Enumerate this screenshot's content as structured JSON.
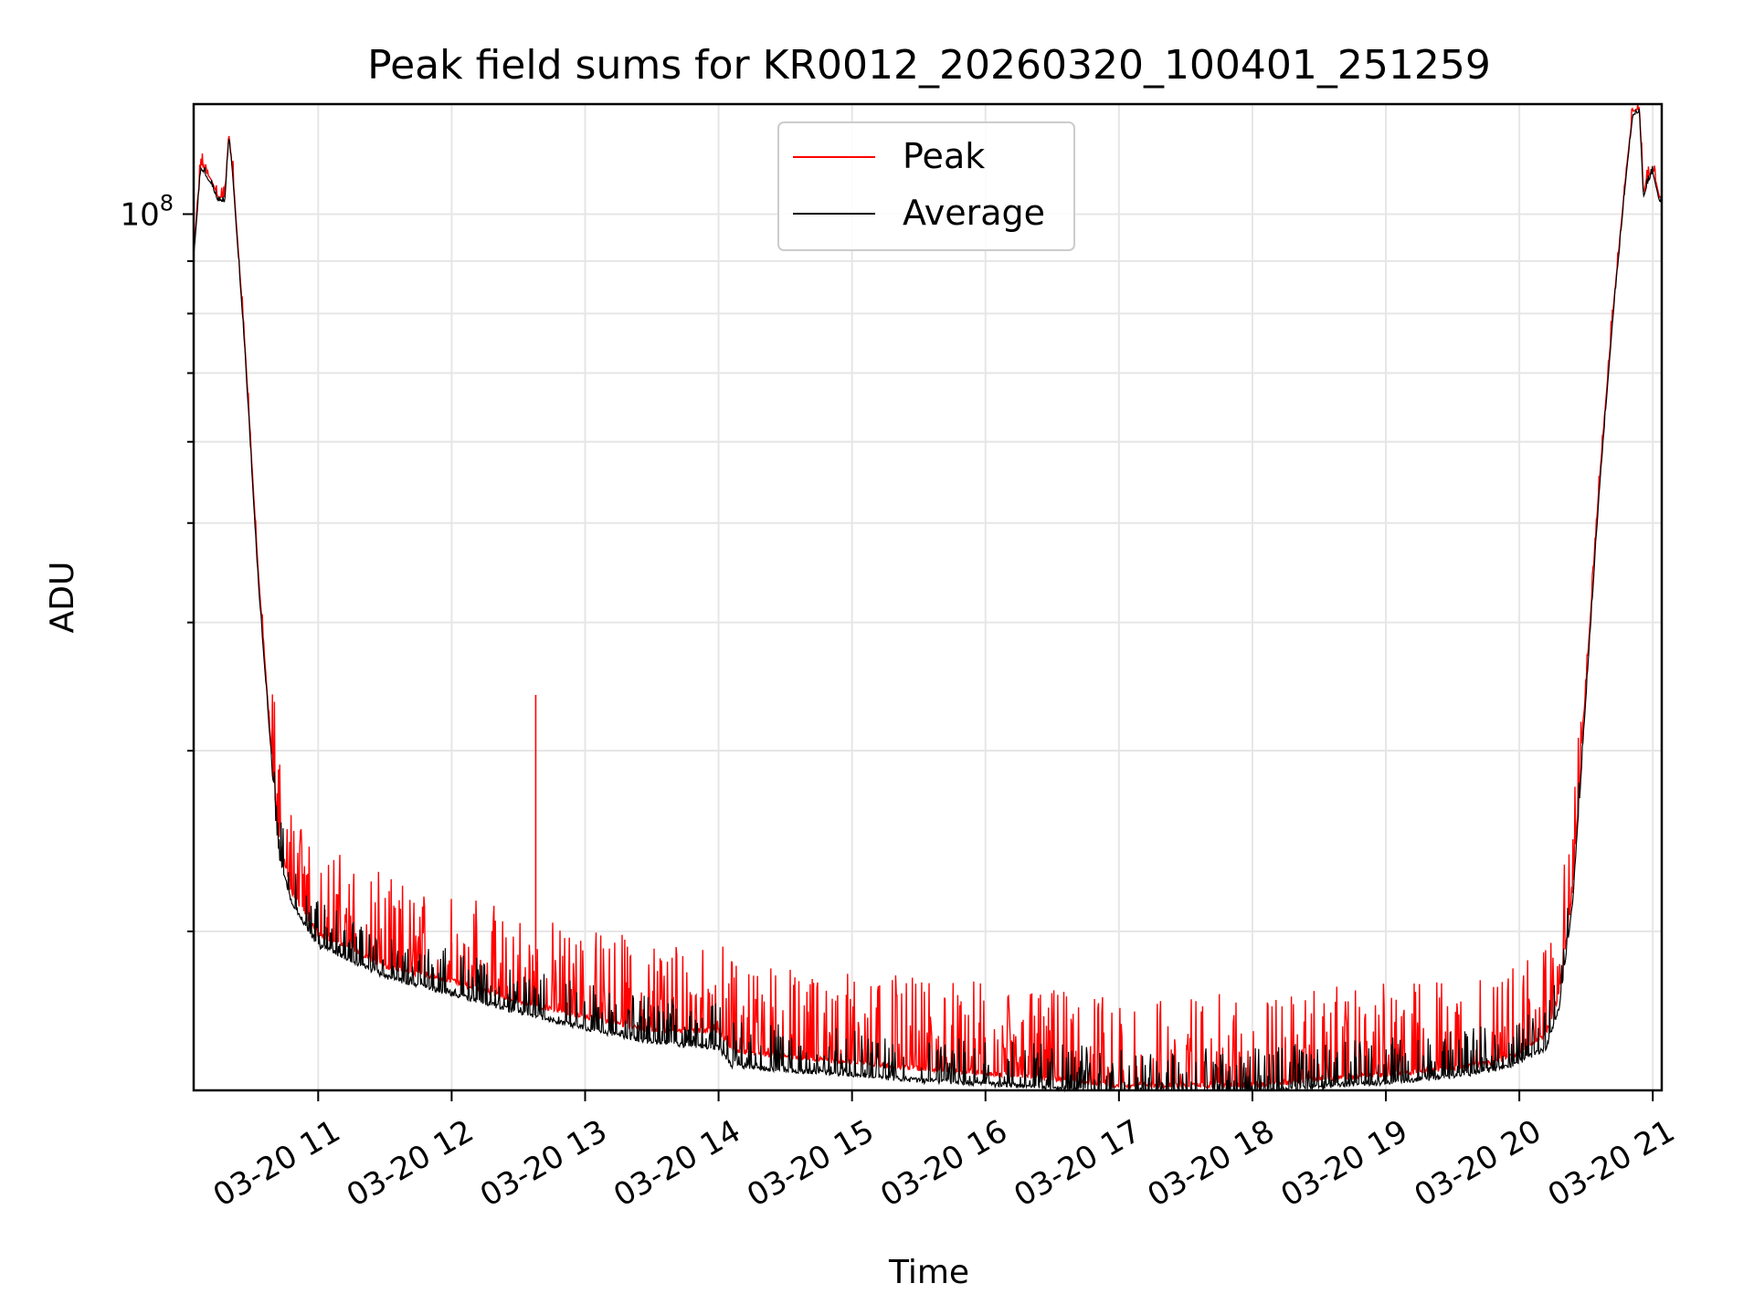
{
  "chart_data": {
    "type": "line",
    "title": "Peak field sums for KR0012_20260320_100401_251259",
    "xlabel": "Time",
    "ylabel": "ADU",
    "yscale": "log",
    "xlim": [
      10.067,
      21.067
    ],
    "ylim": [
      14000000,
      128000000
    ],
    "x_ticks": [
      11,
      12,
      13,
      14,
      15,
      16,
      17,
      18,
      19,
      20,
      21
    ],
    "x_tick_labels": [
      "03-20 11",
      "03-20 12",
      "03-20 13",
      "03-20 14",
      "03-20 15",
      "03-20 16",
      "03-20 17",
      "03-20 18",
      "03-20 19",
      "03-20 20",
      "03-20 21"
    ],
    "y_major_ticks": [
      {
        "value": 100000000,
        "base": "10",
        "exp": "8"
      }
    ],
    "y_minor_ticks": [
      20000000,
      30000000,
      40000000,
      50000000,
      60000000,
      70000000,
      80000000,
      90000000
    ],
    "legend": {
      "position": "upper center"
    },
    "series": [
      {
        "name": "Peak",
        "color": "#ff0000",
        "noise": 0.22,
        "x": [
          10.067,
          10.12,
          10.2,
          10.25,
          10.3,
          10.33,
          10.36,
          10.45,
          10.55,
          10.65,
          10.7,
          10.8,
          11.0,
          11.2,
          11.5,
          12.0,
          12.5,
          13.0,
          13.5,
          14.0,
          14.1,
          14.5,
          15.0,
          15.5,
          16.0,
          16.5,
          17.0,
          17.5,
          18.0,
          18.5,
          19.0,
          19.5,
          19.8,
          20.0,
          20.2,
          20.3,
          20.4,
          20.5,
          20.6,
          20.7,
          20.8,
          20.85,
          20.9,
          20.93,
          20.96,
          21.0,
          21.05
        ],
        "y": [
          92000000,
          112000000,
          108000000,
          104000000,
          104000000,
          120000000,
          110000000,
          75000000,
          45000000,
          30000000,
          25000000,
          22000000,
          20000000,
          19500000,
          18600000,
          18000000,
          17200000,
          16600000,
          16100000,
          16100000,
          15400000,
          15200000,
          15000000,
          14800000,
          14650000,
          14450000,
          14250000,
          14250000,
          14250000,
          14450000,
          14600000,
          14800000,
          15000000,
          15300000,
          16000000,
          17500000,
          22000000,
          35000000,
          55000000,
          80000000,
          110000000,
          126000000,
          127000000,
          105000000,
          108000000,
          111000000,
          104000000
        ],
        "spikes": [
          {
            "x": 12.63,
            "y": 34000000
          },
          {
            "x": 10.72,
            "y": 24500000
          },
          {
            "x": 11.05,
            "y": 21000000
          },
          {
            "x": 12.0,
            "y": 19500000
          }
        ]
      },
      {
        "name": "Average",
        "color": "#000000",
        "noise": 0.1,
        "x": [
          10.067,
          10.12,
          10.2,
          10.25,
          10.3,
          10.33,
          10.36,
          10.45,
          10.55,
          10.65,
          10.7,
          10.8,
          11.0,
          11.2,
          11.5,
          12.0,
          12.5,
          13.0,
          13.5,
          14.0,
          14.1,
          14.5,
          15.0,
          15.5,
          16.0,
          16.5,
          17.0,
          17.5,
          18.0,
          18.5,
          19.0,
          19.5,
          19.8,
          20.0,
          20.2,
          20.3,
          20.4,
          20.5,
          20.6,
          20.7,
          20.8,
          20.85,
          20.9,
          20.93,
          20.96,
          21.0,
          21.05
        ],
        "y": [
          91000000,
          111000000,
          107000000,
          103000000,
          103000000,
          119000000,
          109000000,
          74000000,
          44000000,
          29500000,
          24000000,
          21500000,
          19500000,
          19000000,
          18200000,
          17500000,
          16800000,
          16200000,
          15700000,
          15500000,
          14900000,
          14750000,
          14600000,
          14400000,
          14300000,
          14150000,
          14000000,
          14000000,
          14000000,
          14200000,
          14350000,
          14550000,
          14750000,
          15000000,
          15500000,
          17000000,
          21500000,
          34000000,
          54000000,
          79000000,
          109000000,
          125000000,
          126000000,
          104000000,
          107000000,
          110000000,
          103000000
        ],
        "spikes": [
          {
            "x": 12.63,
            "y": 17600000
          }
        ]
      }
    ]
  }
}
